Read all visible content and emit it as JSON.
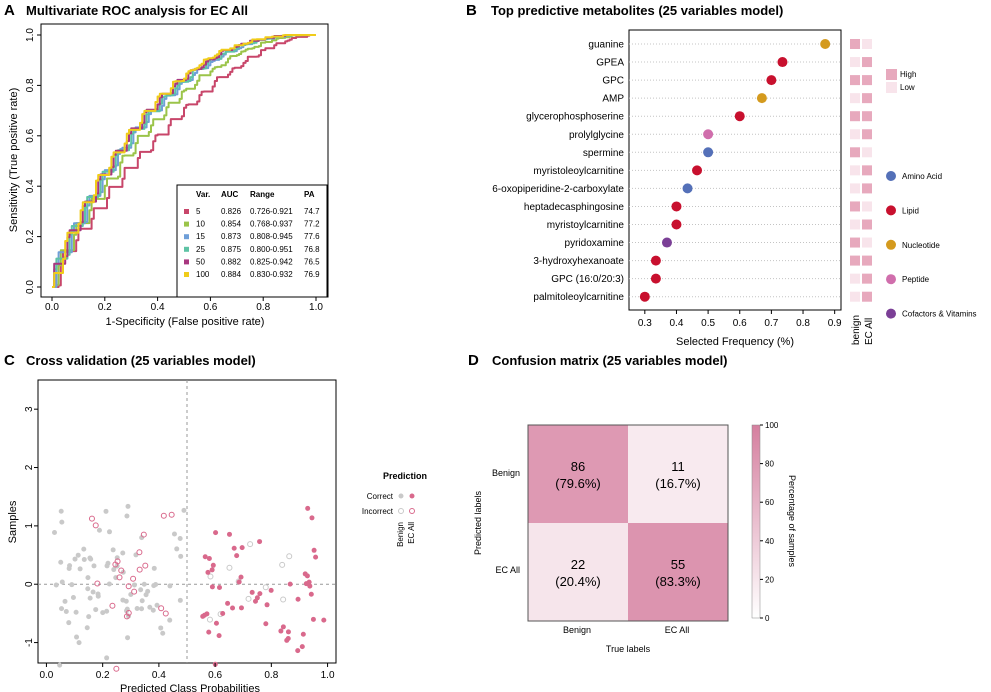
{
  "colors": {
    "cv_pink": "#d9698c",
    "cv_grey": "#c9c9c9",
    "cm_high": "#e0a2b6",
    "cm_low": "#f7e9ee",
    "heat_high": "#e7a9bd",
    "heat_low": "#f8e4eb"
  },
  "panels": {
    "A": {
      "letter": "A",
      "title": "Multivariate ROC analysis for EC All",
      "chart_data": {
        "type": "line",
        "xlabel": "1-Specificity (False positive rate)",
        "ylabel": "Sensitivity (True positive rate)",
        "xlim": [
          0,
          1
        ],
        "ylim": [
          0,
          1
        ],
        "xticks": [
          "0.0",
          "0.2",
          "0.4",
          "0.6",
          "0.8",
          "1.0"
        ],
        "yticks": [
          "0.0",
          "0.2",
          "0.4",
          "0.6",
          "0.8",
          "1.0"
        ],
        "legend_header": [
          "Var.",
          "AUC",
          "Range",
          "PA"
        ],
        "series": [
          {
            "var": "5",
            "auc": "0.826",
            "range": "0.726-0.921",
            "pa": "74.7",
            "color": "#c8466a",
            "k": 1.7
          },
          {
            "var": "10",
            "auc": "0.854",
            "range": "0.768-0.937",
            "pa": "77.2",
            "color": "#9bc449",
            "k": 2.1
          },
          {
            "var": "15",
            "auc": "0.873",
            "range": "0.808-0.945",
            "pa": "77.6",
            "color": "#6f9fd8",
            "k": 2.4
          },
          {
            "var": "25",
            "auc": "0.875",
            "range": "0.800-0.951",
            "pa": "76.8",
            "color": "#5ec3a5",
            "k": 2.45
          },
          {
            "var": "50",
            "auc": "0.882",
            "range": "0.825-0.942",
            "pa": "76.5",
            "color": "#a8377f",
            "k": 2.55
          },
          {
            "var": "100",
            "auc": "0.884",
            "range": "0.830-0.932",
            "pa": "76.9",
            "color": "#f0cc1a",
            "k": 2.6
          }
        ]
      }
    },
    "B": {
      "letter": "B",
      "title": "Top predictive metabolites (25 variables model)",
      "chart_data": {
        "type": "scatter",
        "xlabel": "Selected Frequency (%)",
        "xlim": [
          0.25,
          0.92
        ],
        "xticks": [
          {
            "v": 0.3,
            "label": "0.3"
          },
          {
            "v": 0.4,
            "label": "0.4"
          },
          {
            "v": 0.5,
            "label": "0.5"
          },
          {
            "v": 0.6,
            "label": "0.6"
          },
          {
            "v": 0.7,
            "label": "0.7"
          },
          {
            "v": 0.8,
            "label": "0.8"
          },
          {
            "v": 0.9,
            "label": "0.9"
          }
        ],
        "items": [
          {
            "name": "guanine",
            "value": 0.87,
            "cls": "Nucleotide",
            "benign": "H",
            "ec": "L"
          },
          {
            "name": "GPEA",
            "value": 0.735,
            "cls": "Lipid",
            "benign": "L",
            "ec": "H"
          },
          {
            "name": "GPC",
            "value": 0.7,
            "cls": "Lipid",
            "benign": "H",
            "ec": "H"
          },
          {
            "name": "AMP",
            "value": 0.67,
            "cls": "Nucleotide",
            "benign": "L",
            "ec": "H"
          },
          {
            "name": "glycerophosphoserine",
            "value": 0.6,
            "cls": "Lipid",
            "benign": "H",
            "ec": "H"
          },
          {
            "name": "prolylglycine",
            "value": 0.5,
            "cls": "Peptide",
            "benign": "L",
            "ec": "H"
          },
          {
            "name": "spermine",
            "value": 0.5,
            "cls": "Amino Acid",
            "benign": "H",
            "ec": "L"
          },
          {
            "name": "myristoleoylcarnitine",
            "value": 0.465,
            "cls": "Lipid",
            "benign": "L",
            "ec": "H"
          },
          {
            "name": "6-oxopiperidine-2-carboxylate",
            "value": 0.435,
            "cls": "Amino Acid",
            "benign": "L",
            "ec": "H"
          },
          {
            "name": "heptadecasphingosine",
            "value": 0.4,
            "cls": "Lipid",
            "benign": "H",
            "ec": "L"
          },
          {
            "name": "myristoylcarnitine",
            "value": 0.4,
            "cls": "Lipid",
            "benign": "L",
            "ec": "H"
          },
          {
            "name": "pyridoxamine",
            "value": 0.37,
            "cls": "Cofactors & Vitamins",
            "benign": "H",
            "ec": "L"
          },
          {
            "name": "3-hydroxyhexanoate",
            "value": 0.335,
            "cls": "Lipid",
            "benign": "H",
            "ec": "H"
          },
          {
            "name": "GPC (16:0/20:3)",
            "value": 0.335,
            "cls": "Lipid",
            "benign": "L",
            "ec": "H"
          },
          {
            "name": "palmitoleoylcarnitine",
            "value": 0.3,
            "cls": "Lipid",
            "benign": "L",
            "ec": "H"
          }
        ],
        "heat_columns": [
          "benign",
          "EC All"
        ],
        "heat_legend": [
          {
            "label": "High",
            "key": "H"
          },
          {
            "label": "Low",
            "key": "L"
          }
        ],
        "classes": [
          {
            "name": "Amino Acid",
            "color": "#5470b8"
          },
          {
            "name": "Lipid",
            "color": "#c8102e"
          },
          {
            "name": "Nucleotide",
            "color": "#d49a1e"
          },
          {
            "name": "Peptide",
            "color": "#d06eac"
          },
          {
            "name": "Cofactors & Vitamins",
            "color": "#7b3f96"
          }
        ]
      }
    },
    "C": {
      "letter": "C",
      "title": "Cross validation (25 variables model)",
      "chart_data": {
        "type": "scatter",
        "xlabel": "Predicted Class Probabilities",
        "ylabel": "Samples",
        "xlim": [
          -0.03,
          1.03
        ],
        "ylim": [
          -1.35,
          3.5
        ],
        "xticks": [
          {
            "v": 0.0,
            "label": "0.0"
          },
          {
            "v": 0.2,
            "label": "0.2"
          },
          {
            "v": 0.4,
            "label": "0.4"
          },
          {
            "v": 0.6,
            "label": "0.6"
          },
          {
            "v": 0.8,
            "label": "0.8"
          },
          {
            "v": 1.0,
            "label": "1.0"
          }
        ],
        "yticks": [
          {
            "v": -1,
            "label": "-1"
          },
          {
            "v": 0,
            "label": "0"
          },
          {
            "v": 1,
            "label": "1"
          },
          {
            "v": 2,
            "label": "2"
          },
          {
            "v": 3,
            "label": "3"
          }
        ],
        "threshold": 0.5,
        "legend_title": "Prediction",
        "legend_rows": [
          "Correct",
          "Incorrect"
        ],
        "legend_cols": [
          "Benign",
          "EC All"
        ],
        "counts": {
          "benign_correct": 86,
          "benign_incorrect": 22,
          "ec_correct": 55,
          "ec_incorrect": 11
        }
      }
    },
    "D": {
      "letter": "D",
      "title": "Confusion matrix (25 variables model)",
      "chart_data": {
        "type": "heatmap",
        "xlabel": "True labels",
        "ylabel": "Predicted labels",
        "col_labels": [
          "Benign",
          "EC All"
        ],
        "row_labels": [
          "Benign",
          "EC All"
        ],
        "cells": [
          [
            {
              "count": "86",
              "pct": "(79.6%)",
              "p": 79.6
            },
            {
              "count": "11",
              "pct": "(16.7%)",
              "p": 16.7
            }
          ],
          [
            {
              "count": "22",
              "pct": "(20.4%)",
              "p": 20.4
            },
            {
              "count": "55",
              "pct": "(83.3%)",
              "p": 83.3
            }
          ]
        ],
        "colorbar_label": "Percentage of samples",
        "colorbar_ticks": [
          {
            "v": 0,
            "label": "0"
          },
          {
            "v": 20,
            "label": "20"
          },
          {
            "v": 40,
            "label": "40"
          },
          {
            "v": 60,
            "label": "60"
          },
          {
            "v": 80,
            "label": "80"
          },
          {
            "v": 100,
            "label": "100"
          }
        ]
      }
    }
  }
}
